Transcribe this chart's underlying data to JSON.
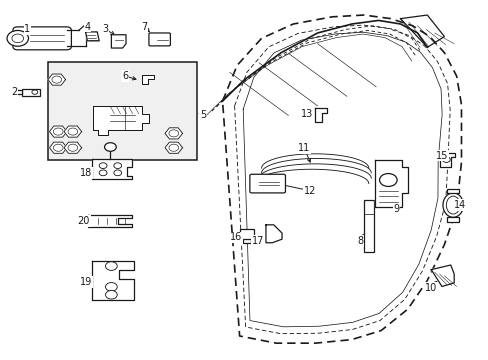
{
  "background_color": "#ffffff",
  "fig_width": 4.89,
  "fig_height": 3.6,
  "dpi": 100,
  "line_color": "#1a1a1a",
  "line_width": 0.9,
  "label_font_size": 7.0
}
